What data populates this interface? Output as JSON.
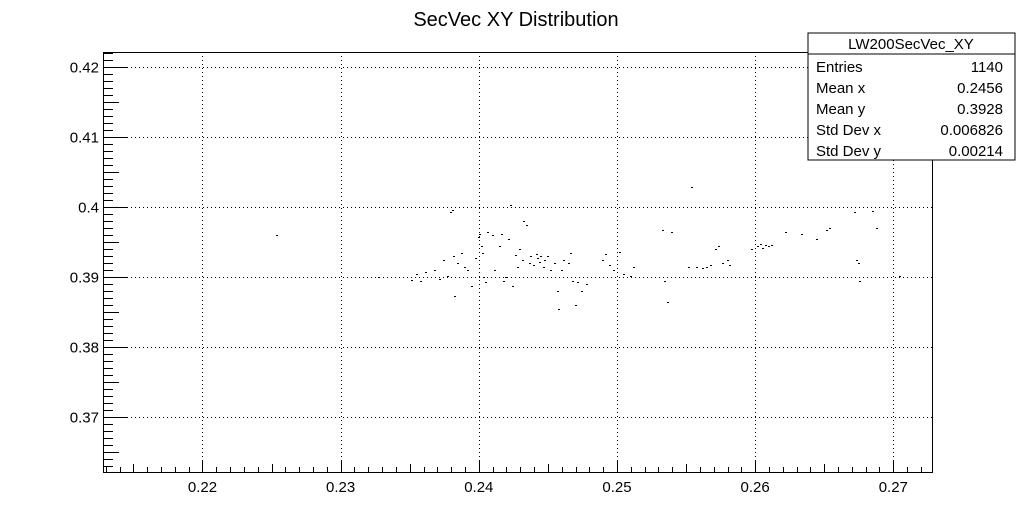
{
  "chart_data": {
    "type": "scatter",
    "title": "SecVec XY Distribution",
    "xlabel": "",
    "ylabel": "",
    "xlim": [
      0.2128,
      0.2728
    ],
    "ylim": [
      0.3622,
      0.4222
    ],
    "x_ticks": [
      0.22,
      0.23,
      0.24,
      0.25,
      0.26,
      0.27
    ],
    "x_tick_labels": [
      "0.22",
      "0.23",
      "0.24",
      "0.25",
      "0.26",
      "0.27"
    ],
    "y_ticks": [
      0.37,
      0.38,
      0.39,
      0.4,
      0.41,
      0.42
    ],
    "y_tick_labels": [
      "0.37",
      "0.38",
      "0.39",
      "0.4",
      "0.41",
      "0.42"
    ],
    "grid": true,
    "stats": {
      "name": "LW200SecVec_XY",
      "rows": [
        {
          "label": "Entries",
          "value": "1140"
        },
        {
          "label": "Mean x",
          "value": "0.2456"
        },
        {
          "label": "Mean y",
          "value": "0.3928"
        },
        {
          "label": "Std Dev x",
          "value": "0.006826"
        },
        {
          "label": "Std Dev y",
          "value": "0.00214"
        }
      ]
    },
    "points": [
      [
        0.2254,
        0.396
      ],
      [
        0.2328,
        0.39
      ],
      [
        0.2352,
        0.3897
      ],
      [
        0.2355,
        0.3905
      ],
      [
        0.2358,
        0.3895
      ],
      [
        0.2362,
        0.3908
      ],
      [
        0.2368,
        0.391
      ],
      [
        0.2372,
        0.3898
      ],
      [
        0.2375,
        0.3925
      ],
      [
        0.2378,
        0.3902
      ],
      [
        0.238,
        0.3993
      ],
      [
        0.2381,
        0.3996
      ],
      [
        0.2382,
        0.393
      ],
      [
        0.2383,
        0.3874
      ],
      [
        0.2385,
        0.392
      ],
      [
        0.2388,
        0.3935
      ],
      [
        0.239,
        0.3915
      ],
      [
        0.2392,
        0.391
      ],
      [
        0.2395,
        0.3888
      ],
      [
        0.2398,
        0.3928
      ],
      [
        0.24,
        0.3958
      ],
      [
        0.2401,
        0.3962
      ],
      [
        0.2402,
        0.3945
      ],
      [
        0.2403,
        0.3935
      ],
      [
        0.2404,
        0.39
      ],
      [
        0.2405,
        0.3893
      ],
      [
        0.2407,
        0.3965
      ],
      [
        0.241,
        0.396
      ],
      [
        0.2412,
        0.391
      ],
      [
        0.2415,
        0.3945
      ],
      [
        0.2417,
        0.3962
      ],
      [
        0.2418,
        0.3895
      ],
      [
        0.242,
        0.39
      ],
      [
        0.2422,
        0.3955
      ],
      [
        0.2423,
        0.4003
      ],
      [
        0.2425,
        0.3888
      ],
      [
        0.2427,
        0.3932
      ],
      [
        0.2428,
        0.3915
      ],
      [
        0.243,
        0.394
      ],
      [
        0.2432,
        0.3925
      ],
      [
        0.2433,
        0.398
      ],
      [
        0.2435,
        0.3975
      ],
      [
        0.2437,
        0.392
      ],
      [
        0.2438,
        0.393
      ],
      [
        0.244,
        0.3918
      ],
      [
        0.2442,
        0.3933
      ],
      [
        0.2443,
        0.3928
      ],
      [
        0.2444,
        0.3922
      ],
      [
        0.2445,
        0.393
      ],
      [
        0.2447,
        0.3915
      ],
      [
        0.2448,
        0.3925
      ],
      [
        0.245,
        0.393
      ],
      [
        0.2452,
        0.391
      ],
      [
        0.2455,
        0.392
      ],
      [
        0.2457,
        0.388
      ],
      [
        0.2458,
        0.3855
      ],
      [
        0.246,
        0.391
      ],
      [
        0.2462,
        0.3925
      ],
      [
        0.2465,
        0.392
      ],
      [
        0.2467,
        0.3935
      ],
      [
        0.2468,
        0.3895
      ],
      [
        0.247,
        0.386
      ],
      [
        0.2472,
        0.3893
      ],
      [
        0.2475,
        0.388
      ],
      [
        0.2478,
        0.389
      ],
      [
        0.249,
        0.3925
      ],
      [
        0.2492,
        0.3933
      ],
      [
        0.2495,
        0.3918
      ],
      [
        0.2498,
        0.391
      ],
      [
        0.2502,
        0.3937
      ],
      [
        0.2505,
        0.3905
      ],
      [
        0.251,
        0.3902
      ],
      [
        0.2512,
        0.3915
      ],
      [
        0.2533,
        0.3968
      ],
      [
        0.2535,
        0.3895
      ],
      [
        0.2537,
        0.3865
      ],
      [
        0.254,
        0.3965
      ],
      [
        0.2552,
        0.3915
      ],
      [
        0.2554,
        0.4029
      ],
      [
        0.2558,
        0.3915
      ],
      [
        0.2562,
        0.3913
      ],
      [
        0.2565,
        0.3915
      ],
      [
        0.2568,
        0.3918
      ],
      [
        0.2572,
        0.394
      ],
      [
        0.2574,
        0.3945
      ],
      [
        0.2577,
        0.392
      ],
      [
        0.258,
        0.3925
      ],
      [
        0.2582,
        0.3918
      ],
      [
        0.2598,
        0.394
      ],
      [
        0.2602,
        0.3945
      ],
      [
        0.2604,
        0.3948
      ],
      [
        0.2606,
        0.3942
      ],
      [
        0.2608,
        0.3946
      ],
      [
        0.261,
        0.3945
      ],
      [
        0.2612,
        0.3947
      ],
      [
        0.2622,
        0.3965
      ],
      [
        0.2634,
        0.3962
      ],
      [
        0.2645,
        0.3955
      ],
      [
        0.2652,
        0.3968
      ],
      [
        0.2654,
        0.397
      ],
      [
        0.2672,
        0.3993
      ],
      [
        0.2674,
        0.3925
      ],
      [
        0.2675,
        0.392
      ],
      [
        0.2676,
        0.3895
      ],
      [
        0.2685,
        0.3995
      ],
      [
        0.2688,
        0.397
      ],
      [
        0.2705,
        0.3902
      ]
    ]
  }
}
